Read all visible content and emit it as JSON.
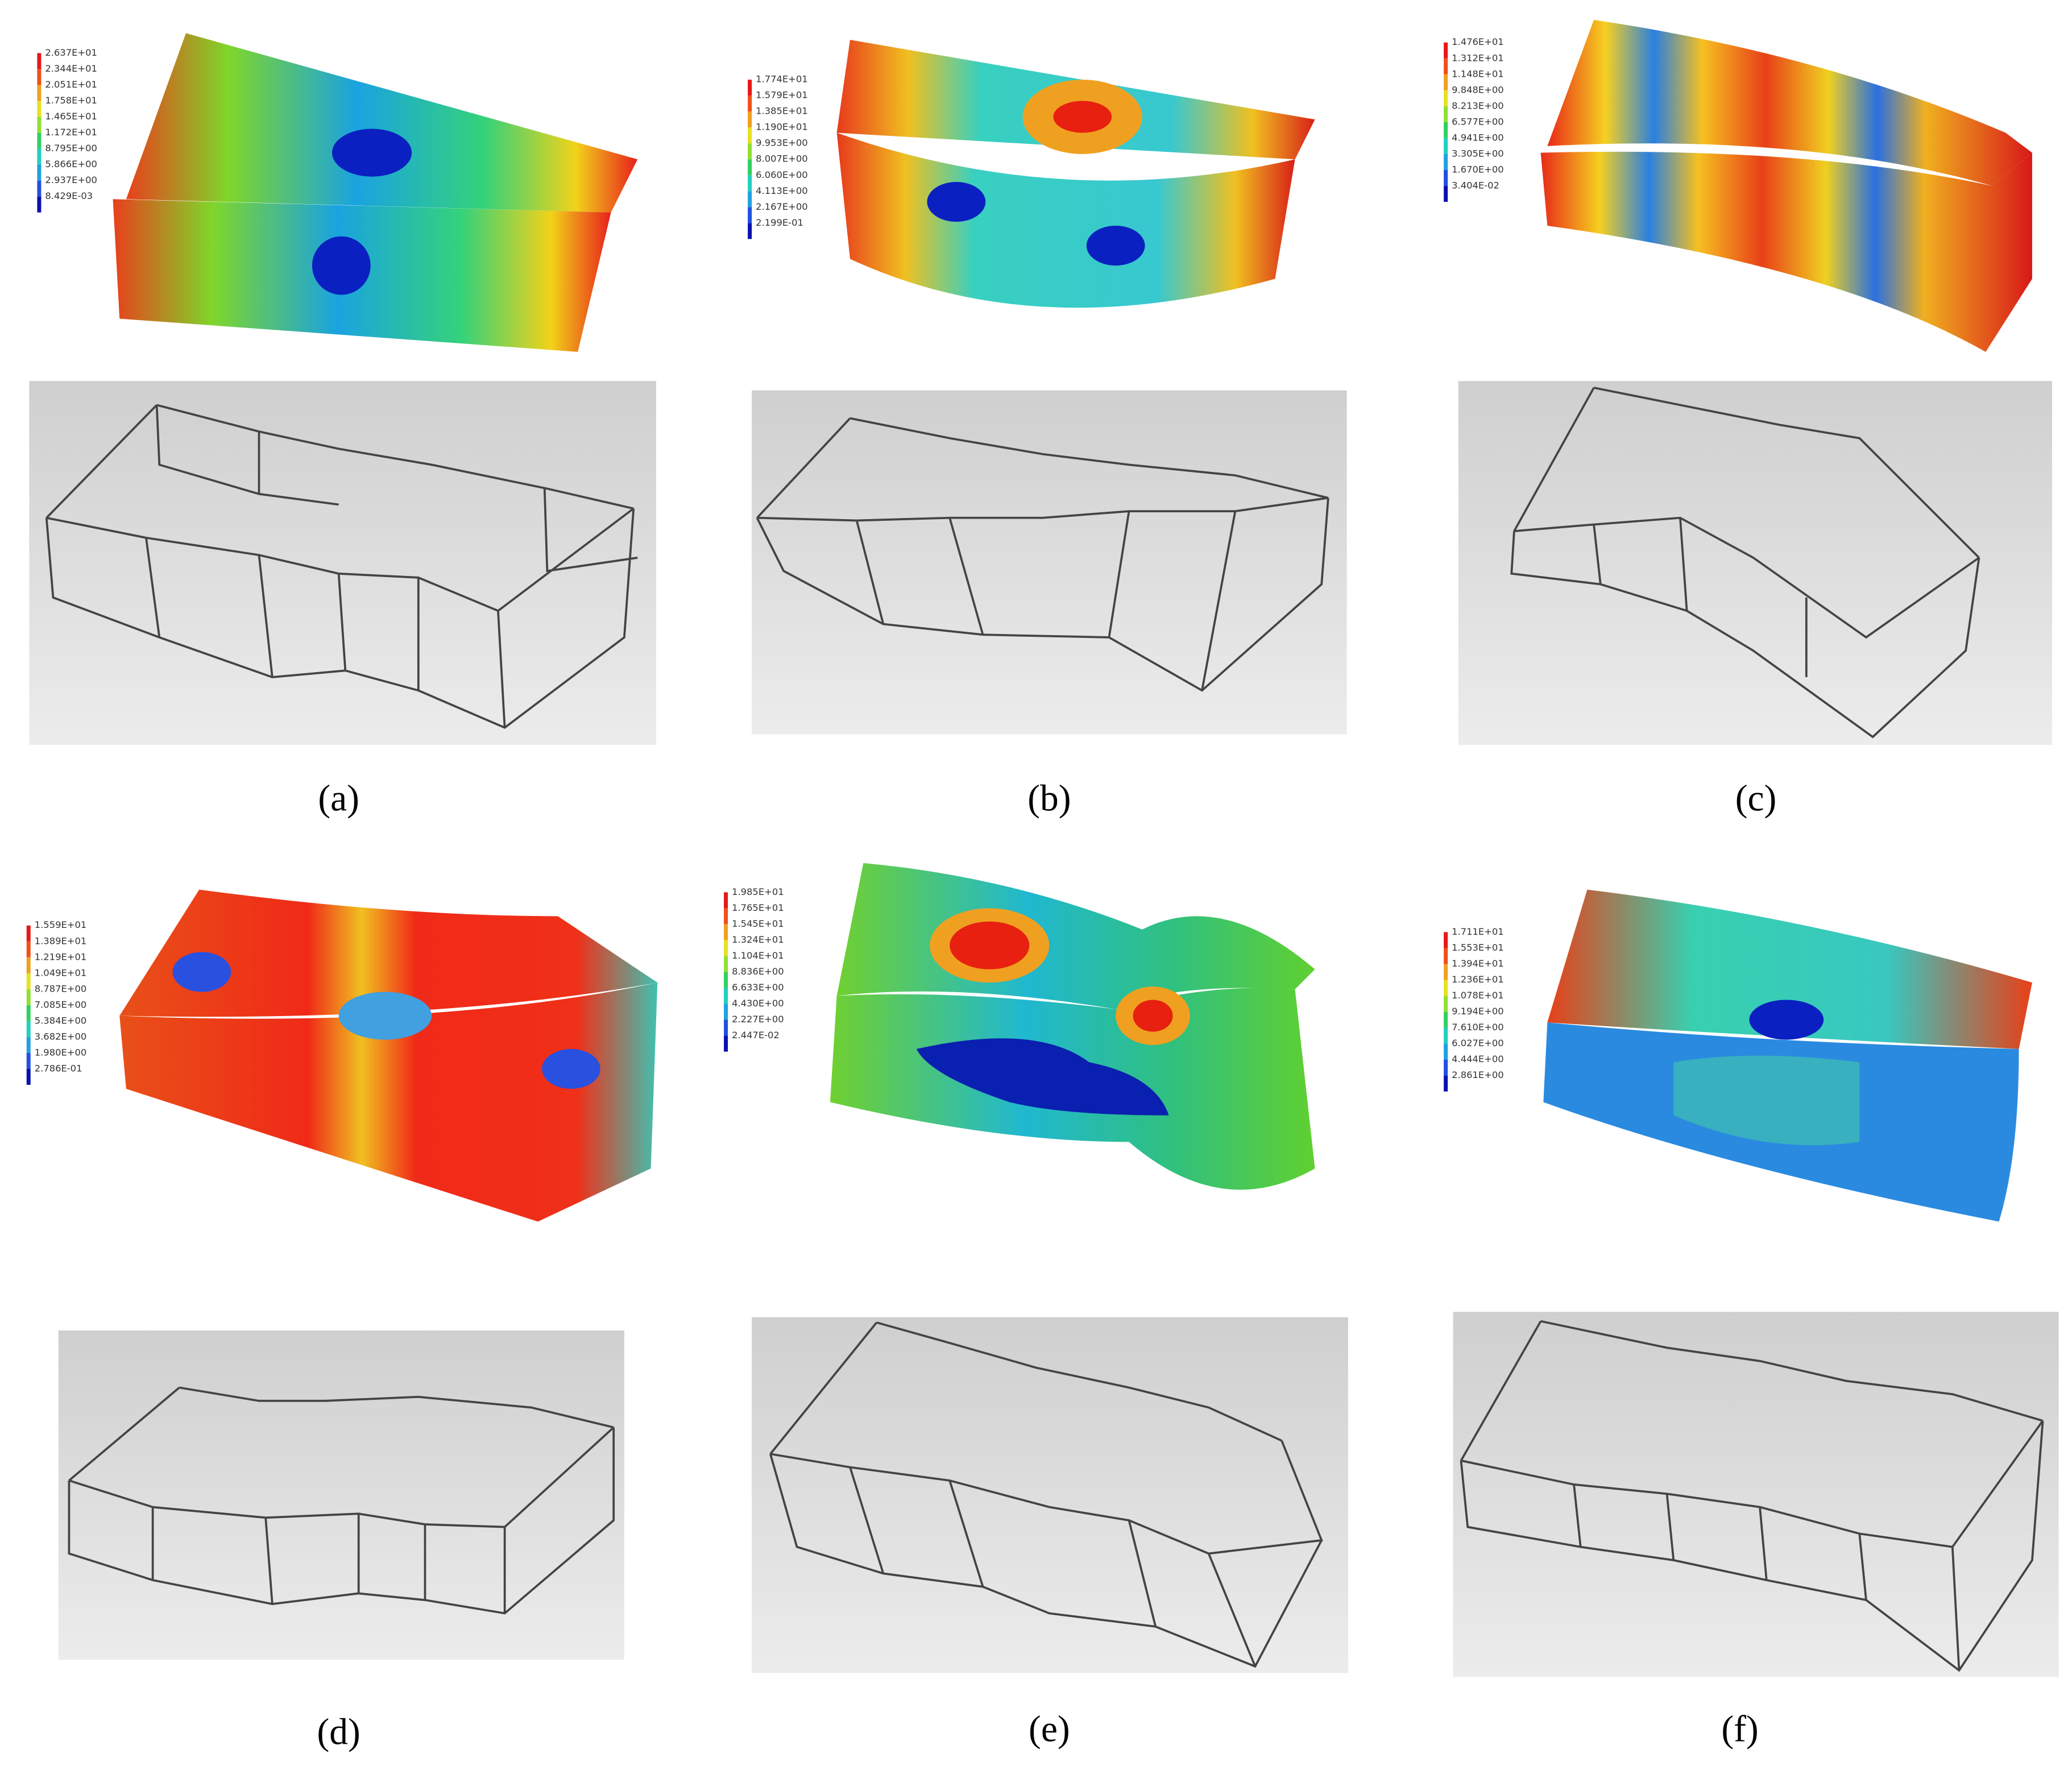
{
  "panels": [
    {
      "caption": "(a)",
      "legend": [
        "2.637E+01",
        "2.344E+01",
        "2.051E+01",
        "1.758E+01",
        "1.465E+01",
        "1.172E+01",
        "8.795E+00",
        "5.866E+00",
        "2.937E+00",
        "8.429E-03"
      ]
    },
    {
      "caption": "(b)",
      "legend": [
        "1.774E+01",
        "1.579E+01",
        "1.385E+01",
        "1.190E+01",
        "9.953E+00",
        "8.007E+00",
        "6.060E+00",
        "4.113E+00",
        "2.167E+00",
        "2.199E-01"
      ]
    },
    {
      "caption": "(c)",
      "legend": [
        "1.476E+01",
        "1.312E+01",
        "1.148E+01",
        "9.848E+00",
        "8.213E+00",
        "6.577E+00",
        "4.941E+00",
        "3.305E+00",
        "1.670E+00",
        "3.404E-02"
      ]
    },
    {
      "caption": "(d)",
      "legend": [
        "1.559E+01",
        "1.389E+01",
        "1.219E+01",
        "1.049E+01",
        "8.787E+00",
        "7.085E+00",
        "5.384E+00",
        "3.682E+00",
        "1.980E+00",
        "2.786E-01"
      ]
    },
    {
      "caption": "(e)",
      "legend": [
        "1.985E+01",
        "1.765E+01",
        "1.545E+01",
        "1.324E+01",
        "1.104E+01",
        "8.836E+00",
        "6.633E+00",
        "4.430E+00",
        "2.227E+00",
        "2.447E-02"
      ]
    },
    {
      "caption": "(f)",
      "legend": [
        "1.711E+01",
        "1.553E+01",
        "1.394E+01",
        "1.236E+01",
        "1.078E+01",
        "9.194E+00",
        "7.610E+00",
        "6.027E+00",
        "4.444E+00",
        "2.861E+00"
      ]
    }
  ]
}
